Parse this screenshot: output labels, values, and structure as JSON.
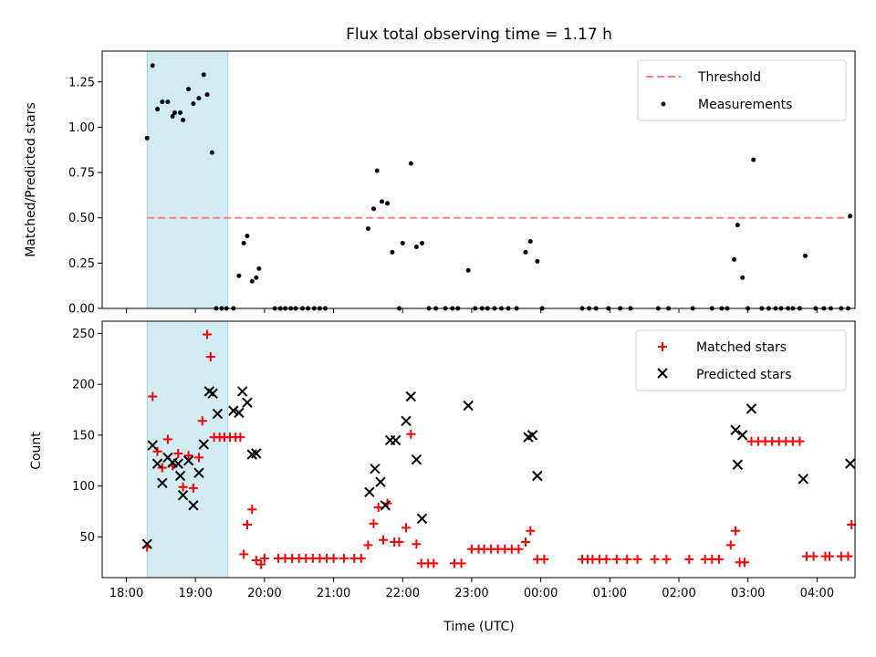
{
  "chart_data": [
    {
      "type": "scatter",
      "title": "Flux total observing time = 1.17 h",
      "ylabel": "Matched/Predicted stars",
      "ylim": [
        0,
        1.42
      ],
      "xlim": [
        -0.35,
        10.55
      ],
      "y_ticks": [
        0.0,
        0.25,
        0.5,
        0.75,
        1.0,
        1.25
      ],
      "y_tick_labels": [
        "0.00",
        "0.25",
        "0.50",
        "0.75",
        "1.00",
        "1.25"
      ],
      "shaded_span": [
        0.3,
        1.47
      ],
      "shade_color": "#add8e6",
      "threshold": {
        "name": "Threshold",
        "y": 0.5,
        "color": "#ff8080",
        "style": "dashed"
      },
      "legend_position": "upper right",
      "series": [
        {
          "name": "Measurements",
          "marker": "dot",
          "color": "#000000",
          "points": [
            [
              0.3,
              0.94
            ],
            [
              0.38,
              1.34
            ],
            [
              0.45,
              1.1
            ],
            [
              0.52,
              1.14
            ],
            [
              0.6,
              1.14
            ],
            [
              0.67,
              1.06
            ],
            [
              0.7,
              1.08
            ],
            [
              0.78,
              1.08
            ],
            [
              0.82,
              1.04
            ],
            [
              0.9,
              1.21
            ],
            [
              0.97,
              1.13
            ],
            [
              1.05,
              1.16
            ],
            [
              1.12,
              1.29
            ],
            [
              1.17,
              1.18
            ],
            [
              1.24,
              0.86
            ],
            [
              1.3,
              0
            ],
            [
              1.38,
              0
            ],
            [
              1.45,
              0
            ],
            [
              1.55,
              0
            ],
            [
              1.63,
              0.18
            ],
            [
              1.7,
              0.36
            ],
            [
              1.75,
              0.4
            ],
            [
              1.82,
              0.15
            ],
            [
              1.88,
              0.17
            ],
            [
              1.92,
              0.22
            ],
            [
              2.15,
              0
            ],
            [
              2.23,
              0
            ],
            [
              2.3,
              0
            ],
            [
              2.38,
              0
            ],
            [
              2.45,
              0
            ],
            [
              2.55,
              0
            ],
            [
              2.63,
              0
            ],
            [
              2.72,
              0
            ],
            [
              2.8,
              0
            ],
            [
              2.88,
              0
            ],
            [
              3.5,
              0.44
            ],
            [
              3.58,
              0.55
            ],
            [
              3.63,
              0.76
            ],
            [
              3.7,
              0.59
            ],
            [
              3.78,
              0.58
            ],
            [
              3.85,
              0.31
            ],
            [
              3.95,
              0
            ],
            [
              4.0,
              0.36
            ],
            [
              4.12,
              0.8
            ],
            [
              4.2,
              0.34
            ],
            [
              4.28,
              0.36
            ],
            [
              4.38,
              0
            ],
            [
              4.48,
              0
            ],
            [
              4.62,
              0
            ],
            [
              4.72,
              0
            ],
            [
              4.8,
              0
            ],
            [
              4.95,
              0.21
            ],
            [
              5.05,
              0
            ],
            [
              5.15,
              0
            ],
            [
              5.23,
              0
            ],
            [
              5.33,
              0
            ],
            [
              5.43,
              0
            ],
            [
              5.53,
              0
            ],
            [
              5.65,
              0
            ],
            [
              5.78,
              0.31
            ],
            [
              5.85,
              0.37
            ],
            [
              5.95,
              0.26
            ],
            [
              6.02,
              0
            ],
            [
              6.6,
              0
            ],
            [
              6.7,
              0
            ],
            [
              6.8,
              0
            ],
            [
              6.98,
              0
            ],
            [
              7.15,
              0
            ],
            [
              7.3,
              0
            ],
            [
              7.7,
              0
            ],
            [
              7.85,
              0
            ],
            [
              8.2,
              0
            ],
            [
              8.48,
              0
            ],
            [
              8.62,
              0
            ],
            [
              8.7,
              0
            ],
            [
              8.8,
              0.27
            ],
            [
              8.85,
              0.46
            ],
            [
              8.92,
              0.17
            ],
            [
              9.0,
              0
            ],
            [
              9.08,
              0.82
            ],
            [
              9.2,
              0
            ],
            [
              9.3,
              0
            ],
            [
              9.4,
              0
            ],
            [
              9.48,
              0
            ],
            [
              9.58,
              0
            ],
            [
              9.65,
              0
            ],
            [
              9.75,
              0
            ],
            [
              9.83,
              0.29
            ],
            [
              9.98,
              0
            ],
            [
              10.1,
              0
            ],
            [
              10.2,
              0
            ],
            [
              10.35,
              0
            ],
            [
              10.45,
              0
            ],
            [
              10.48,
              0.51
            ]
          ]
        }
      ]
    },
    {
      "type": "scatter",
      "ylabel": "Count",
      "xlabel": "Time (UTC)",
      "ylim": [
        10,
        262
      ],
      "xlim": [
        -0.35,
        10.55
      ],
      "y_ticks": [
        50,
        100,
        150,
        200,
        250
      ],
      "y_tick_labels": [
        "50",
        "100",
        "150",
        "200",
        "250"
      ],
      "x_ticks": [
        0,
        1,
        2,
        3,
        4,
        5,
        6,
        7,
        8,
        9,
        10
      ],
      "x_tick_labels": [
        "18:00",
        "19:00",
        "20:00",
        "21:00",
        "22:00",
        "23:00",
        "00:00",
        "01:00",
        "02:00",
        "03:00",
        "04:00"
      ],
      "shaded_span": [
        0.3,
        1.47
      ],
      "shade_color": "#add8e6",
      "legend_position": "upper right",
      "series": [
        {
          "name": "Matched stars",
          "marker": "plus",
          "color": "#ff0000",
          "points": [
            [
              0.3,
              40
            ],
            [
              0.38,
              188
            ],
            [
              0.45,
              134
            ],
            [
              0.52,
              118
            ],
            [
              0.6,
              146
            ],
            [
              0.67,
              120
            ],
            [
              0.75,
              132
            ],
            [
              0.82,
              99
            ],
            [
              0.9,
              130
            ],
            [
              0.97,
              98
            ],
            [
              1.05,
              128
            ],
            [
              1.1,
              164
            ],
            [
              1.17,
              249
            ],
            [
              1.22,
              227
            ],
            [
              1.27,
              148
            ],
            [
              1.35,
              148
            ],
            [
              1.42,
              148
            ],
            [
              1.5,
              148
            ],
            [
              1.58,
              148
            ],
            [
              1.65,
              148
            ],
            [
              1.7,
              33
            ],
            [
              1.75,
              62
            ],
            [
              1.82,
              77
            ],
            [
              1.88,
              27
            ],
            [
              1.95,
              23
            ],
            [
              2.0,
              29
            ],
            [
              2.2,
              29
            ],
            [
              2.3,
              29
            ],
            [
              2.4,
              29
            ],
            [
              2.5,
              29
            ],
            [
              2.6,
              29
            ],
            [
              2.7,
              29
            ],
            [
              2.8,
              29
            ],
            [
              2.9,
              29
            ],
            [
              3.0,
              29
            ],
            [
              3.15,
              29
            ],
            [
              3.3,
              29
            ],
            [
              3.4,
              29
            ],
            [
              3.5,
              42
            ],
            [
              3.58,
              63
            ],
            [
              3.65,
              79
            ],
            [
              3.72,
              47
            ],
            [
              3.78,
              83
            ],
            [
              3.88,
              45
            ],
            [
              3.95,
              45
            ],
            [
              4.05,
              59
            ],
            [
              4.12,
              151
            ],
            [
              4.2,
              43
            ],
            [
              4.27,
              24
            ],
            [
              4.37,
              24
            ],
            [
              4.45,
              24
            ],
            [
              4.75,
              24
            ],
            [
              4.85,
              24
            ],
            [
              5.0,
              38
            ],
            [
              5.1,
              38
            ],
            [
              5.18,
              38
            ],
            [
              5.28,
              38
            ],
            [
              5.38,
              38
            ],
            [
              5.48,
              38
            ],
            [
              5.58,
              38
            ],
            [
              5.68,
              38
            ],
            [
              5.78,
              45
            ],
            [
              5.85,
              56
            ],
            [
              5.95,
              28
            ],
            [
              6.05,
              28
            ],
            [
              6.6,
              28
            ],
            [
              6.68,
              28
            ],
            [
              6.75,
              28
            ],
            [
              6.85,
              28
            ],
            [
              6.95,
              28
            ],
            [
              7.1,
              28
            ],
            [
              7.25,
              28
            ],
            [
              7.4,
              28
            ],
            [
              7.65,
              28
            ],
            [
              7.82,
              28
            ],
            [
              8.15,
              28
            ],
            [
              8.38,
              28
            ],
            [
              8.48,
              28
            ],
            [
              8.58,
              28
            ],
            [
              8.75,
              42
            ],
            [
              8.82,
              56
            ],
            [
              8.88,
              25
            ],
            [
              8.95,
              25
            ],
            [
              9.05,
              144
            ],
            [
              9.15,
              144
            ],
            [
              9.25,
              144
            ],
            [
              9.35,
              144
            ],
            [
              9.45,
              144
            ],
            [
              9.55,
              144
            ],
            [
              9.65,
              144
            ],
            [
              9.75,
              144
            ],
            [
              9.85,
              31
            ],
            [
              9.95,
              31
            ],
            [
              10.12,
              31
            ],
            [
              10.18,
              31
            ],
            [
              10.35,
              31
            ],
            [
              10.45,
              31
            ],
            [
              10.5,
              62
            ]
          ]
        },
        {
          "name": "Predicted stars",
          "marker": "x",
          "color": "#000000",
          "points": [
            [
              0.3,
              43
            ],
            [
              0.38,
              140
            ],
            [
              0.45,
              122
            ],
            [
              0.52,
              103
            ],
            [
              0.6,
              128
            ],
            [
              0.67,
              123
            ],
            [
              0.75,
              122
            ],
            [
              0.78,
              110
            ],
            [
              0.82,
              91
            ],
            [
              0.9,
              125
            ],
            [
              0.97,
              81
            ],
            [
              1.05,
              113
            ],
            [
              1.12,
              141
            ],
            [
              1.2,
              193
            ],
            [
              1.25,
              191
            ],
            [
              1.32,
              171
            ],
            [
              1.55,
              174
            ],
            [
              1.63,
              172
            ],
            [
              1.68,
              193
            ],
            [
              1.75,
              182
            ],
            [
              1.82,
              131
            ],
            [
              1.88,
              132
            ],
            [
              3.52,
              94
            ],
            [
              3.6,
              117
            ],
            [
              3.68,
              104
            ],
            [
              3.75,
              81
            ],
            [
              3.82,
              145
            ],
            [
              3.9,
              145
            ],
            [
              4.05,
              164
            ],
            [
              4.12,
              188
            ],
            [
              4.2,
              126
            ],
            [
              4.28,
              68
            ],
            [
              4.95,
              179
            ],
            [
              5.82,
              148
            ],
            [
              5.88,
              150
            ],
            [
              5.95,
              110
            ],
            [
              8.82,
              155
            ],
            [
              8.85,
              121
            ],
            [
              8.92,
              150
            ],
            [
              9.05,
              176
            ],
            [
              9.8,
              107
            ],
            [
              10.48,
              122
            ]
          ]
        }
      ]
    }
  ]
}
